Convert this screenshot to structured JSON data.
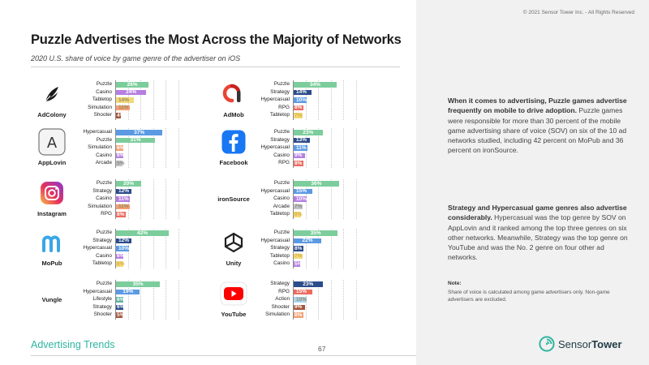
{
  "copyright": "© 2021 Sensor Tower Inc. - All Rights Reserved",
  "title": "Puzzle Advertises the Most Across the Majority of Networks",
  "subtitle": "2020 U.S. share of voice by game genre of the advertiser on iOS",
  "colors": {
    "Puzzle": "#7ccd9c",
    "Casino": "#b57fe0",
    "Tabletop": "#f2d878",
    "Simulation": "#f2a073",
    "Shooter": "#a3543c",
    "Hypercasual": "#5b9ae3",
    "Arcade": "#c2c2c2",
    "Strategy": "#2b4c8a",
    "RPG": "#ec6a5e",
    "Lifestyle": "#5fb3a0",
    "Action": "#aad4f0"
  },
  "chart_data": {
    "type": "bar",
    "orientation": "horizontal",
    "unit": "%",
    "panels": [
      {
        "network": "AdColony",
        "icon": "adcolony-icon",
        "categories": [
          "Puzzle",
          "Casino",
          "Tabletop",
          "Simulation",
          "Shooter"
        ],
        "values": [
          26,
          24,
          14,
          11,
          4
        ],
        "labels": [
          "26%",
          "24%",
          "14%",
          "11%",
          "4%"
        ]
      },
      {
        "network": "AppLovin",
        "icon": "applovin-icon",
        "categories": [
          "Hypercasual",
          "Puzzle",
          "Simulation",
          "Casino",
          "Arcade"
        ],
        "values": [
          37,
          31,
          6,
          6,
          5
        ],
        "labels": [
          "37%",
          "31%",
          "6%",
          "6%",
          "5%"
        ]
      },
      {
        "network": "Instagram",
        "icon": "instagram-icon",
        "categories": [
          "Puzzle",
          "Strategy",
          "Casino",
          "Simulation",
          "RPG"
        ],
        "values": [
          20,
          12,
          11,
          11,
          8
        ],
        "labels": [
          "20%",
          "12%",
          "11%",
          "11%",
          "8%"
        ]
      },
      {
        "network": "MoPub",
        "icon": "mopub-icon",
        "categories": [
          "Puzzle",
          "Strategy",
          "Hypercasual",
          "Casino",
          "Tabletop"
        ],
        "values": [
          42,
          12,
          10,
          6,
          6
        ],
        "labels": [
          "42%",
          "12%",
          "10%",
          "6%",
          "6%"
        ]
      },
      {
        "network": "Vungle",
        "icon": "vungle-icon",
        "categories": [
          "Puzzle",
          "Hypercasual",
          "Lifestyle",
          "Strategy",
          "Shooter"
        ],
        "values": [
          35,
          19,
          6,
          6,
          5
        ],
        "labels": [
          "35%",
          "19%",
          "6%",
          "6%",
          "5%"
        ]
      },
      {
        "network": "AdMob",
        "icon": "admob-icon",
        "categories": [
          "Puzzle",
          "Strategy",
          "Hypercasual",
          "RPG",
          "Tabletop"
        ],
        "values": [
          34,
          14,
          10,
          8,
          7
        ],
        "labels": [
          "34%",
          "14%",
          "10%",
          "8%",
          "7%"
        ]
      },
      {
        "network": "Facebook",
        "icon": "facebook-icon",
        "categories": [
          "Puzzle",
          "Strategy",
          "Hypercasual",
          "Casino",
          "RPG"
        ],
        "values": [
          23,
          13,
          11,
          9,
          8
        ],
        "labels": [
          "23%",
          "13%",
          "11%",
          "9%",
          "8%"
        ]
      },
      {
        "network": "ironSource",
        "icon": "ironsource-icon",
        "categories": [
          "Puzzle",
          "Hypercasual",
          "Casino",
          "Arcade",
          "Tabletop"
        ],
        "values": [
          36,
          15,
          10,
          7,
          6
        ],
        "labels": [
          "36%",
          "15%",
          "10%",
          "7%",
          "6%"
        ]
      },
      {
        "network": "Unity",
        "icon": "unity-icon",
        "categories": [
          "Puzzle",
          "Hypercasual",
          "Strategy",
          "Tabletop",
          "Casino"
        ],
        "values": [
          35,
          22,
          8,
          7,
          5
        ],
        "labels": [
          "35%",
          "22%",
          "8%",
          "7%",
          "5%"
        ]
      },
      {
        "network": "YouTube",
        "icon": "youtube-icon",
        "categories": [
          "Strategy",
          "RPG",
          "Action",
          "Shooter",
          "Simulation"
        ],
        "values": [
          23,
          15,
          10,
          9,
          8
        ],
        "labels": [
          "23%",
          "15%",
          "10%",
          "9%",
          "8%"
        ]
      }
    ]
  },
  "body": {
    "p1_bold": "When it comes to advertising, Puzzle games advertise frequently on mobile to drive adoption.",
    "p1_text": " Puzzle games were responsible for more than 30 percent of the mobile game advertising share of voice (SOV) on six of the 10 ad networks studied, including 42 percent on MoPub and 36 percent on ironSource.",
    "p2_bold": "Strategy and Hypercasual game genres also advertise considerably.",
    "p2_text": " Hypercasual was the top genre by SOV on AppLovin and it ranked among the top three genres on six other networks. Meanwhile, Strategy was the top genre on YouTube and was the No. 2 genre on four other ad networks."
  },
  "note": {
    "title": "Note:",
    "text": "Share of voice is calculated among game advertisers only. Non-game advertisers are excluded."
  },
  "footer": {
    "left": "Advertising Trends",
    "page": "67",
    "brand_part1": "Sensor",
    "brand_part2": "Tower"
  }
}
